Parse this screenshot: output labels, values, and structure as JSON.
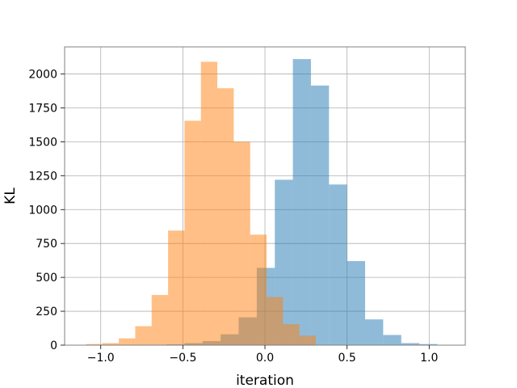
{
  "chart_data": {
    "type": "histogram",
    "title": "",
    "xlabel": "iteration",
    "ylabel": "KL",
    "xlim": [
      -1.22,
      1.22
    ],
    "ylim": [
      0,
      2200
    ],
    "grid": true,
    "legend": "none",
    "xticks": [
      -1.0,
      -0.5,
      0.0,
      0.5,
      1.0
    ],
    "xtick_labels": [
      "−1.0",
      "−0.5",
      "0.0",
      "0.5",
      "1.0"
    ],
    "yticks": [
      0,
      250,
      500,
      750,
      1000,
      1250,
      1500,
      1750,
      2000
    ],
    "ytick_labels": [
      "0",
      "250",
      "500",
      "750",
      "1000",
      "1250",
      "1500",
      "1750",
      "2000"
    ],
    "series": [
      {
        "color": "#1f77b4",
        "alpha": 0.5,
        "bin_edges": [
          -0.71,
          -0.6,
          -0.49,
          -0.38,
          -0.27,
          -0.16,
          -0.05,
          0.06,
          0.17,
          0.28,
          0.39,
          0.5,
          0.61,
          0.72,
          0.83,
          0.94,
          1.05
        ],
        "counts": [
          3,
          6,
          15,
          30,
          80,
          205,
          570,
          1220,
          2110,
          1915,
          1185,
          620,
          190,
          75,
          15,
          8
        ]
      },
      {
        "color": "#ff7f0e",
        "alpha": 0.5,
        "bin_edges": [
          -1.09,
          -0.99,
          -0.89,
          -0.79,
          -0.69,
          -0.59,
          -0.49,
          -0.39,
          -0.29,
          -0.19,
          -0.09,
          0.01,
          0.11,
          0.21,
          0.31
        ],
        "counts": [
          8,
          15,
          50,
          140,
          370,
          845,
          1655,
          2090,
          1895,
          1500,
          815,
          355,
          155,
          70
        ]
      }
    ]
  }
}
